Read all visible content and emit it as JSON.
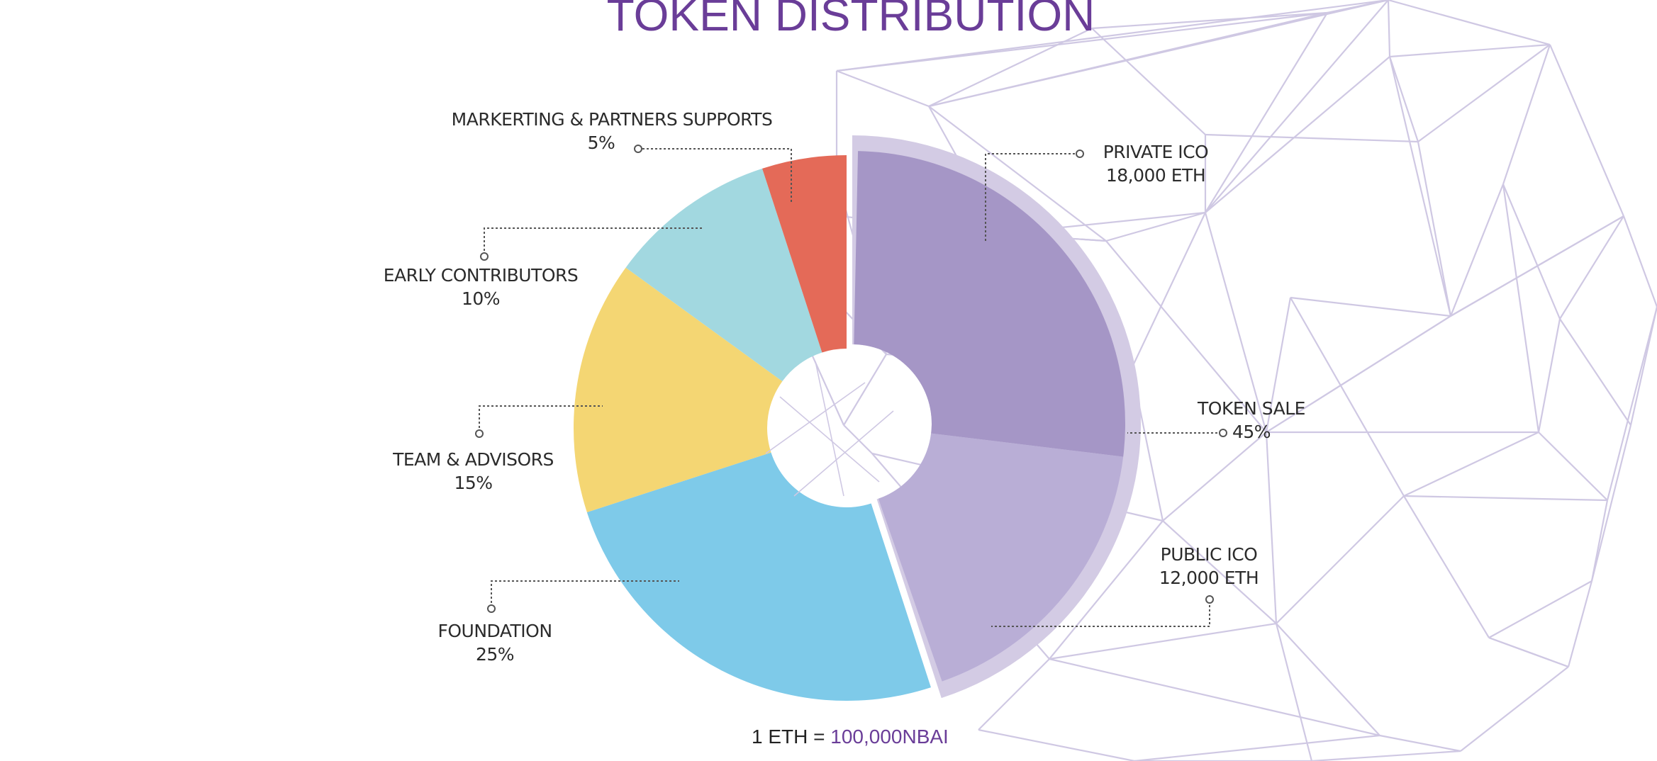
{
  "title": "TOKEN DISTRIBUTION",
  "colors": {
    "title": "#6a3d98",
    "private_ico": "#a596c6",
    "public_ico": "#b9aed6",
    "token_sale_ring": "#d3cbe4",
    "foundation": "#7ecae9",
    "team_advisors": "#f4d673",
    "early_contributors": "#a2d8e0",
    "marketing": "#e46a58",
    "network_lines": "#cfc8e3"
  },
  "chart_data": {
    "type": "pie",
    "title": "TOKEN DISTRIBUTION",
    "slices": [
      {
        "name": "TOKEN SALE",
        "value": 45,
        "label": "45%",
        "color": "#a596c6",
        "sub_slices": [
          {
            "name": "PRIVATE ICO",
            "value": 18000,
            "label": "18,000 ETH",
            "color": "#a596c6"
          },
          {
            "name": "PUBLIC ICO",
            "value": 12000,
            "label": "12,000 ETH",
            "color": "#b9aed6"
          }
        ]
      },
      {
        "name": "FOUNDATION",
        "value": 25,
        "label": "25%",
        "color": "#7ecae9"
      },
      {
        "name": "TEAM & ADVISORS",
        "value": 15,
        "label": "15%",
        "color": "#f4d673"
      },
      {
        "name": "EARLY CONTRIBUTORS",
        "value": 10,
        "label": "10%",
        "color": "#a2d8e0"
      },
      {
        "name": "MARKERTING & PARTNERS SUPPORTS",
        "value": 5,
        "label": "5%",
        "color": "#e46a58"
      }
    ]
  },
  "labels": {
    "marketing": {
      "name": "MARKERTING & PARTNERS SUPPORTS",
      "value": "5%"
    },
    "private_ico": {
      "name": "PRIVATE ICO",
      "value": "18,000 ETH"
    },
    "early_contributors": {
      "name": "EARLY CONTRIBUTORS",
      "value": "10%"
    },
    "token_sale": {
      "name": "TOKEN SALE",
      "value": "45%"
    },
    "team_advisors": {
      "name": "TEAM & ADVISORS",
      "value": "15%"
    },
    "public_ico": {
      "name": "PUBLIC ICO",
      "value": "12,000 ETH"
    },
    "foundation": {
      "name": "FOUNDATION",
      "value": "25%"
    }
  },
  "footer": {
    "prefix": "1 ETH = ",
    "rate": "100,000NBAI"
  }
}
